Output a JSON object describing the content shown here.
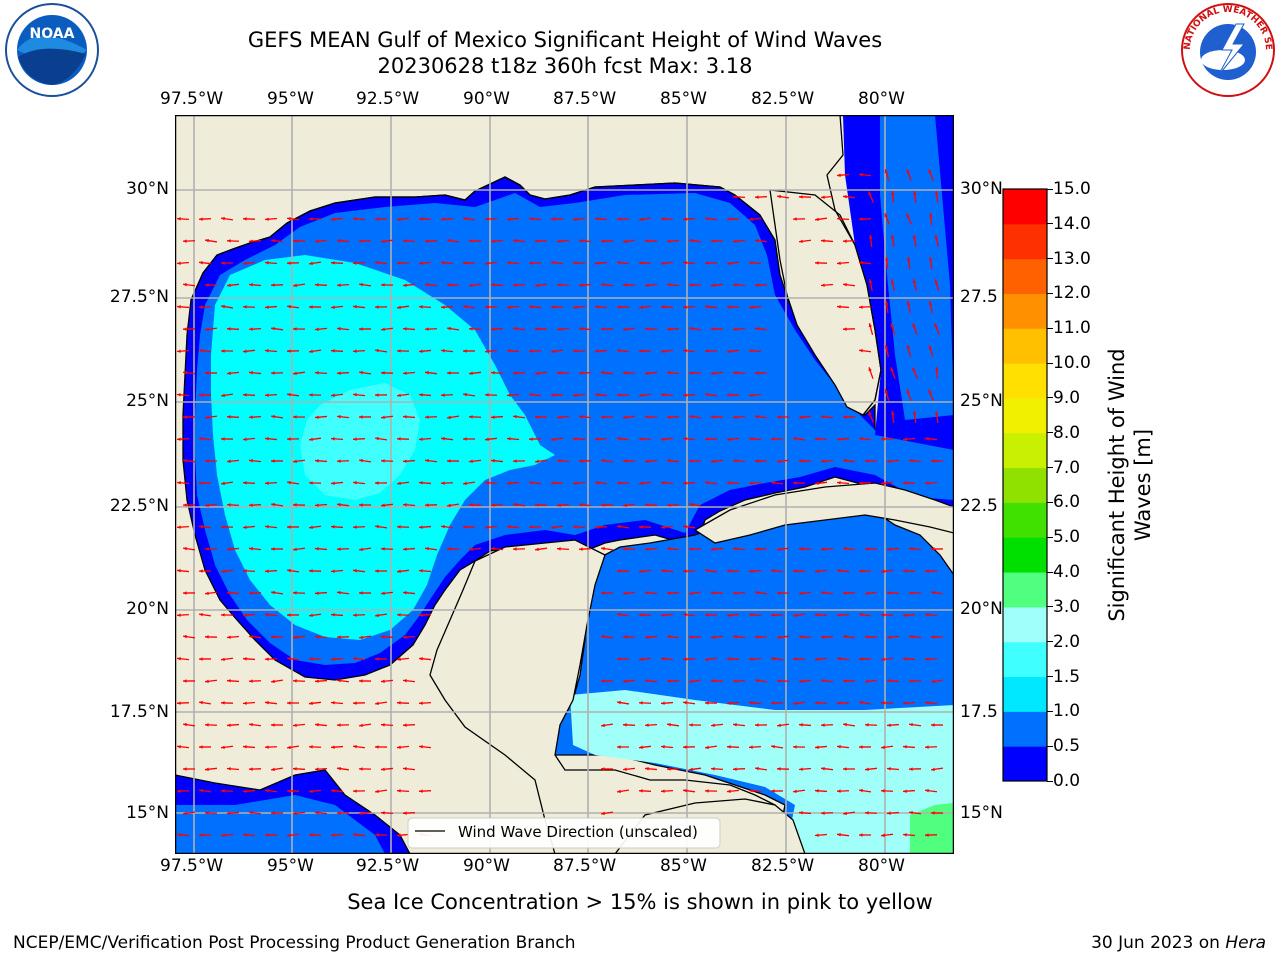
{
  "title_line1": "GEFS MEAN Gulf of Mexico Significant Height of Wind Waves",
  "title_line2": "20230628 t18z 360h fcst   Max: 3.18",
  "lon_labels": [
    "97.5°W",
    "95°W",
    "92.5°W",
    "90°W",
    "87.5°W",
    "85°W",
    "82.5°W",
    "80°W"
  ],
  "lat_labels_left": [
    "30°N",
    "27.5°N",
    "25°N",
    "22.5°N",
    "20°N",
    "17.5°N",
    "15°N"
  ],
  "lat_labels_right": [
    "30°N",
    "27.5",
    "25°N",
    "22.5",
    "20°N",
    "17.5",
    "15°N"
  ],
  "legend_label": "Wind Wave Direction (unscaled)",
  "colorbar": {
    "label": "Significant Height of Wind Waves [m]",
    "ticks": [
      "0.0",
      "0.5",
      "1.0",
      "1.5",
      "2.0",
      "3.0",
      "4.0",
      "5.0",
      "6.0",
      "7.0",
      "8.0",
      "9.0",
      "10.0",
      "11.0",
      "12.0",
      "13.0",
      "14.0",
      "15.0"
    ],
    "colors": [
      "#0000ff",
      "#0070ff",
      "#00e8ff",
      "#40ffff",
      "#a0fff8",
      "#50ff80",
      "#00e000",
      "#40e000",
      "#90e000",
      "#c8f000",
      "#f0f000",
      "#ffe000",
      "#ffc000",
      "#ff9000",
      "#ff6000",
      "#ff3000",
      "#ff0000"
    ]
  },
  "colors": {
    "land": "#efedda",
    "ocean_low": "#0000ff",
    "arrows": "#ff0000"
  },
  "subtitle": "Sea Ice Concentration > 15% is shown in pink to yellow",
  "footer_left": "NCEP/EMC/Verification Post Processing Product Generation Branch",
  "footer_date": "30 Jun 2023 on ",
  "footer_host": "Hera",
  "logos": {
    "noaa": "NOAA",
    "nws": "NATIONAL WEATHER SERVICE"
  }
}
